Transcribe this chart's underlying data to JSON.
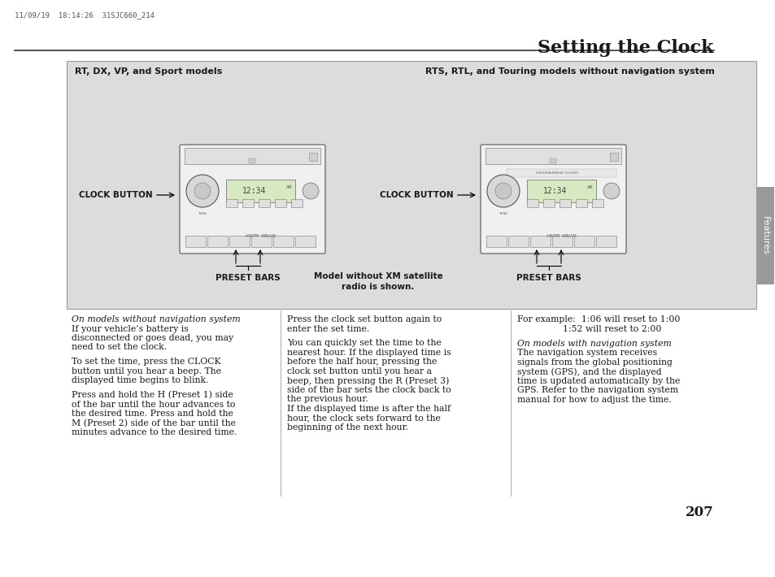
{
  "page_title": "Setting the Clock",
  "header_stamp": "11/09/19  18:14:26  31SJC660_214",
  "page_number": "207",
  "sidebar_text": "Features",
  "diagram_bg": "#dcdcdc",
  "diagram_title_left": "RT, DX, VP, and Sport models",
  "diagram_title_right": "RTS, RTL, and Touring models without navigation system",
  "diagram_label_left_clock": "CLOCK BUTTON",
  "diagram_label_left_preset": "PRESET BARS",
  "diagram_label_right_clock": "CLOCK BUTTON",
  "diagram_label_right_preset": "PRESET BARS",
  "diagram_label_center_line1": "Model without XM satellite",
  "diagram_label_center_line2": "radio is shown.",
  "col1_italic_line": "On models without navigation system",
  "col1_text_lines": [
    "On models without navigation system",
    "If your vehicle’s battery is",
    "disconnected or goes dead, you may",
    "need to set the clock.",
    "",
    "To set the time, press the CLOCK",
    "button until you hear a beep. The",
    "displayed time begins to blink.",
    "",
    "Press and hold the H (Preset 1) side",
    "of the bar until the hour advances to",
    "the desired time. Press and hold the",
    "M (Preset 2) side of the bar until the",
    "minutes advance to the desired time."
  ],
  "col2_text_lines": [
    "Press the clock set button again to",
    "enter the set time.",
    "",
    "You can quickly set the time to the",
    "nearest hour. If the displayed time is",
    "before the half hour, pressing the",
    "clock set button until you hear a",
    "beep, then pressing the R (Preset 3)",
    "side of the bar sets the clock back to",
    "the previous hour.",
    "If the displayed time is after the half",
    "hour, the clock sets forward to the",
    "beginning of the next hour."
  ],
  "col3_example_line1": "For example:  1:06 will reset to 1:00",
  "col3_example_line2": "                1:52 will reset to 2:00",
  "col3_nav_lines": [
    "On models with navigation system",
    "The navigation system receives",
    "signals from the global positioning",
    "system (GPS), and the displayed",
    "time is updated automatically by the",
    "GPS. Refer to the navigation system",
    "manual for how to adjust the time."
  ],
  "background_color": "#ffffff",
  "text_color": "#1a1a1a",
  "sidebar_bg": "#999999"
}
